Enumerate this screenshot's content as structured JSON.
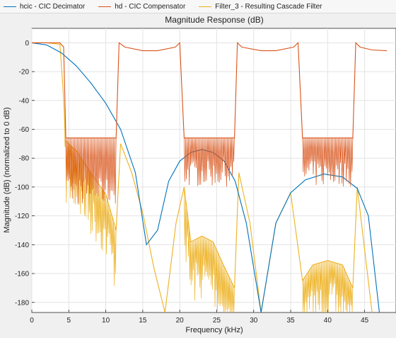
{
  "legend": [
    {
      "label": "hcic - CIC Decimator",
      "color": "#0072BD"
    },
    {
      "label": "hd - CIC Compensator",
      "color": "#D95319"
    },
    {
      "label": "Filter_3 - Resulting Cascade Filter",
      "color": "#EDB120"
    }
  ],
  "chart_data": {
    "type": "line",
    "title": "Magnitude Response (dB)",
    "xlabel": "Frequency (kHz)",
    "ylabel": "Magnitude (dB) (normalized to 0 dB)",
    "xlim": [
      0,
      48
    ],
    "ylim": [
      -187,
      10
    ],
    "xticks": [
      0,
      5,
      10,
      15,
      20,
      25,
      30,
      35,
      40,
      45
    ],
    "yticks": [
      0,
      -20,
      -40,
      -60,
      -80,
      -100,
      -120,
      -140,
      -160,
      -180
    ],
    "grid": true,
    "series": [
      {
        "name": "hcic - CIC Decimator",
        "color": "#0072BD",
        "x": [
          0,
          2,
          4,
          6,
          8,
          10,
          12,
          14,
          15.5,
          17,
          18.5,
          20,
          21.5,
          23,
          24.5,
          26,
          27.5,
          29,
          31,
          33,
          35,
          37,
          39.5,
          42,
          44,
          45.5,
          47
        ],
        "y": [
          0,
          -1.5,
          -7,
          -16,
          -28,
          -42,
          -60,
          -90,
          -140,
          -130,
          -96,
          -82,
          -76,
          -74,
          -76,
          -82,
          -96,
          -125,
          -187,
          -125,
          -104,
          -95,
          -91,
          -93,
          -101,
          -120,
          -187
        ]
      },
      {
        "name": "hd - CIC Compensator",
        "color": "#D95319",
        "x": [
          0,
          3.8,
          4.3,
          4.6,
          11.4,
          11.8,
          12.6,
          15,
          17,
          19.4,
          20,
          20.6,
          27.4,
          27.8,
          28.4,
          31,
          33,
          35.4,
          36,
          36.6,
          43.4,
          43.8,
          44.4,
          46,
          48
        ],
        "y": [
          0,
          0,
          -3,
          -66,
          -66,
          0,
          -3,
          -5.5,
          -5.5,
          -3,
          0,
          -66,
          -66,
          0,
          -3,
          -5.5,
          -5.5,
          -3,
          0,
          -66,
          -66,
          0,
          -3,
          -5,
          -5.5
        ],
        "stopband_ripple": {
          "top_db": -66,
          "bottom_db": [
            -112,
            -100,
            -100,
            -100,
            -100,
            -100
          ],
          "bands_khz": [
            [
              4.6,
              11.4
            ],
            [
              20.6,
              27.4
            ],
            [
              36.6,
              43.4
            ]
          ]
        }
      },
      {
        "name": "Filter_3 - Resulting Cascade Filter",
        "color": "#EDB120",
        "x": [
          0,
          2,
          3.8,
          4.2,
          4.6,
          6,
          8,
          10,
          11.4,
          12,
          13.5,
          15,
          16.5,
          18,
          19.5,
          20.6,
          21.5,
          23,
          24.5,
          26,
          27.4,
          28,
          29.5,
          31,
          33,
          35,
          36.6,
          38,
          40,
          42,
          43.4,
          44,
          46
        ],
        "y": [
          0,
          0,
          -1,
          -30,
          -68,
          -75,
          -90,
          -105,
          -130,
          -70,
          -90,
          -118,
          -156,
          -187,
          -125,
          -100,
          -138,
          -134,
          -138,
          -155,
          -170,
          -90,
          -125,
          -187,
          -125,
          -104,
          -165,
          -154,
          -151,
          -154,
          -170,
          -100,
          -187
        ]
      }
    ]
  }
}
